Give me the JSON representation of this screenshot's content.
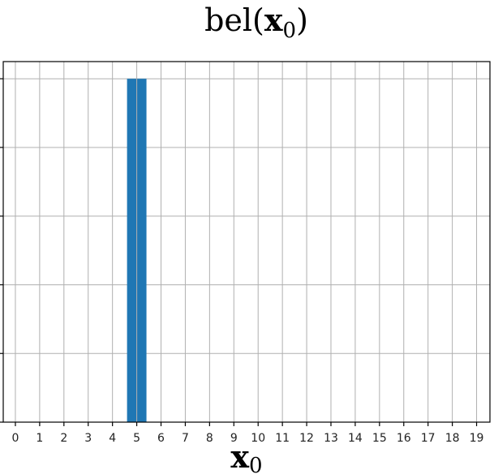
{
  "chart_data": {
    "type": "bar",
    "title": {
      "prefix": "bel(",
      "bold": "x",
      "subscript": "0",
      "suffix": ")"
    },
    "xlabel": {
      "bold": "x",
      "subscript": "0"
    },
    "ylabel": "",
    "categories": [
      "0",
      "1",
      "2",
      "3",
      "4",
      "5",
      "6",
      "7",
      "8",
      "9",
      "10",
      "11",
      "12",
      "13",
      "14",
      "15",
      "16",
      "17",
      "18",
      "19"
    ],
    "values": [
      0,
      0,
      0,
      0,
      0,
      1,
      0,
      0,
      0,
      0,
      0,
      0,
      0,
      0,
      0,
      0,
      0,
      0,
      0,
      0
    ],
    "ylim": [
      0,
      1.05
    ],
    "yticks": [
      0,
      0.2,
      0.4,
      0.6,
      0.8,
      1.0
    ],
    "ytick_labels_visible": false,
    "grid": true,
    "bar_color": "#1f77b4"
  }
}
